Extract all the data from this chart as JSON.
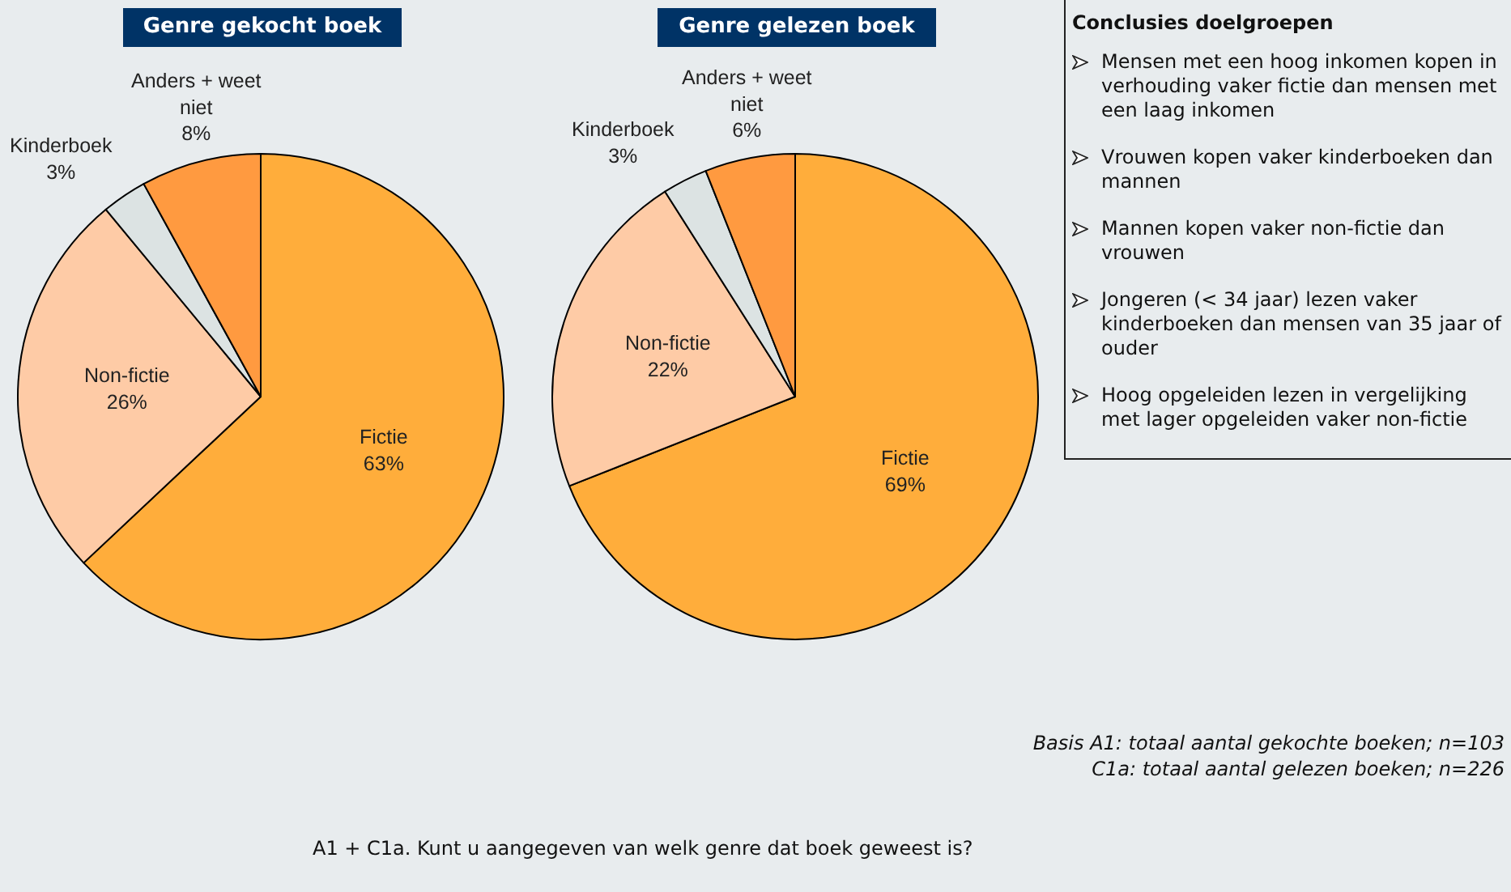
{
  "chart_data": [
    {
      "type": "pie",
      "title": "Genre gekocht boek",
      "categories": [
        "Fictie",
        "Non-fictie",
        "Kinderboek",
        "Anders + weet niet"
      ],
      "values": [
        63,
        26,
        3,
        8
      ],
      "value_labels": [
        "63%",
        "26%",
        "3%",
        "8%"
      ],
      "colors": [
        "#ffad3b",
        "#fecba6",
        "#dce3e3",
        "#ff9a40"
      ],
      "annotations": [
        "A1 + C1a. Kunt u aangegeven van welk genre dat boek geweest is?"
      ]
    },
    {
      "type": "pie",
      "title": "Genre gelezen boek",
      "categories": [
        "Fictie",
        "Non-fictie",
        "Kinderboek",
        "Anders + weet niet"
      ],
      "values": [
        69,
        22,
        3,
        6
      ],
      "value_labels": [
        "69%",
        "22%",
        "3%",
        "6%"
      ],
      "colors": [
        "#ffad3b",
        "#fecba6",
        "#dce3e3",
        "#ff9a40"
      ],
      "annotations": [
        "Basis A1: totaal aantal gekochte boeken; n=103",
        "C1a: totaal aantal gelezen boeken; n=226"
      ]
    },
    {
      "type": "other",
      "title": "Conclusies doelgroepen",
      "annotations": [
        "Mensen met een hoog inkomen kopen in verhouding vaker fictie dan mensen met een laag inkomen",
        "Vrouwen kopen vaker kinderboeken dan mannen",
        "Mannen kopen vaker non-fictie dan vrouwen",
        "Jongeren (< 34 jaar) lezen vaker kinderboeken dan mensen van 35 jaar of ouder",
        "Hoog opgeleiden lezen in vergelijking met lager opgeleiden vaker non-fictie"
      ]
    }
  ]
}
